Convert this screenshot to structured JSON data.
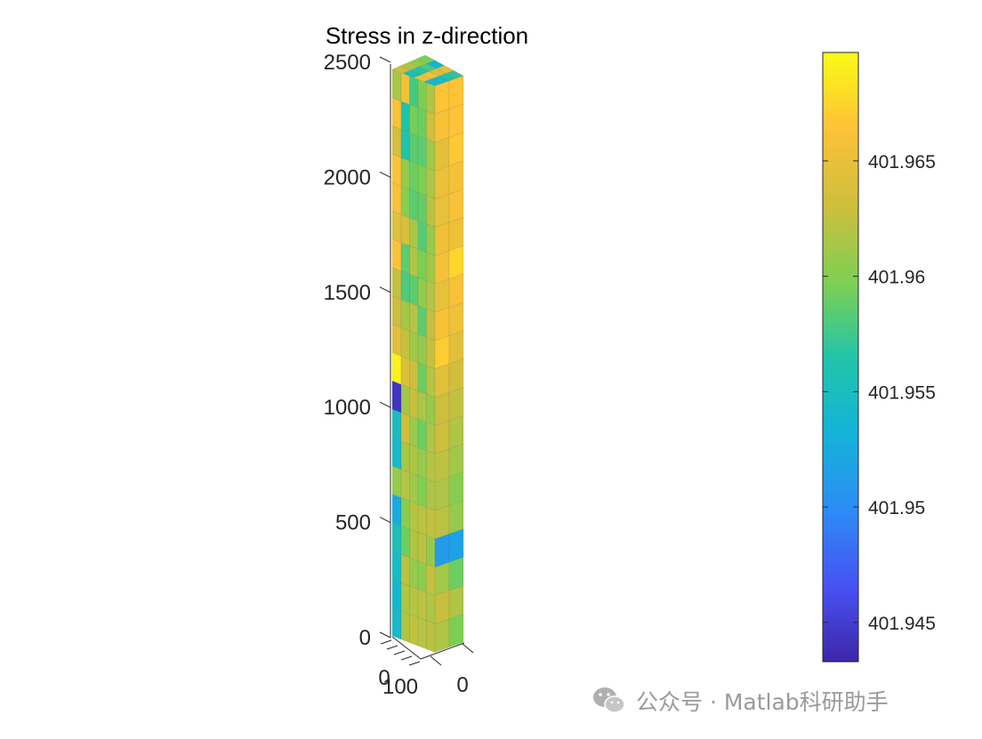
{
  "chart_data": {
    "type": "3d-column",
    "title": "Stress in z-direction",
    "z_axis": {
      "ticks": [
        0,
        500,
        1000,
        1500,
        2000,
        2500
      ],
      "range": [
        0,
        2500
      ]
    },
    "x_axis_ticks": [
      "0",
      "100"
    ],
    "y_axis_ticks": [
      "0"
    ],
    "colormap": "parula",
    "colorbar": {
      "range": [
        401.9433,
        401.9697
      ],
      "ticks": [
        401.945,
        401.95,
        401.955,
        401.96,
        401.965
      ],
      "tick_labels": [
        "401.945",
        "401.95",
        "401.955",
        "401.96",
        "401.965"
      ]
    },
    "faces": {
      "levels": 20,
      "left": [
        0.69,
        0.86,
        0.77,
        0.87,
        0.86,
        0.79,
        0.87,
        0.73,
        0.75,
        0.8,
        0.98,
        0.04,
        0.45,
        0.42,
        0.66,
        0.35,
        0.46,
        0.43,
        0.4,
        0.42
      ],
      "front": [
        [
          0.85,
          0.5,
          0.5,
          0.66,
          0.64,
          0.77,
          0.58,
          0.56,
          0.68,
          0.74,
          0.78,
          0.68,
          0.76,
          0.69,
          0.71,
          0.64,
          0.6,
          0.72,
          0.7,
          0.7
        ],
        [
          0.55,
          0.61,
          0.58,
          0.6,
          0.58,
          0.69,
          0.7,
          0.58,
          0.71,
          0.68,
          0.75,
          0.74,
          0.67,
          0.7,
          0.68,
          0.71,
          0.7,
          0.66,
          0.71,
          0.73
        ],
        [
          0.62,
          0.6,
          0.58,
          0.62,
          0.59,
          0.57,
          0.62,
          0.65,
          0.58,
          0.66,
          0.6,
          0.69,
          0.6,
          0.66,
          0.63,
          0.72,
          0.72,
          0.65,
          0.72,
          0.71
        ],
        [
          0.7,
          0.76,
          0.68,
          0.7,
          0.72,
          0.66,
          0.68,
          0.71,
          0.74,
          0.74,
          0.71,
          0.66,
          0.7,
          0.71,
          0.7,
          0.73,
          0.66,
          0.74,
          0.7,
          0.72
        ]
      ],
      "right": [
        [
          0.88,
          0.86,
          0.81,
          0.83,
          0.82,
          0.84,
          0.85,
          0.82,
          0.86,
          0.9,
          0.8,
          0.75,
          0.75,
          0.72,
          0.7,
          0.72,
          0.3,
          0.68,
          0.74,
          0.7
        ],
        [
          0.88,
          0.88,
          0.89,
          0.85,
          0.86,
          0.84,
          0.92,
          0.86,
          0.84,
          0.8,
          0.76,
          0.73,
          0.7,
          0.68,
          0.64,
          0.66,
          0.32,
          0.6,
          0.7,
          0.62
        ]
      ],
      "top": [
        0.75,
        0.45,
        0.82,
        0.4,
        0.7,
        0.5,
        0.85,
        0.42,
        0.66,
        0.55,
        0.78,
        0.48,
        0.62,
        0.38,
        0.8,
        0.52
      ]
    }
  },
  "watermark": {
    "text": "公众号 · Matlab科研助手",
    "icon": "wechat-icon"
  }
}
